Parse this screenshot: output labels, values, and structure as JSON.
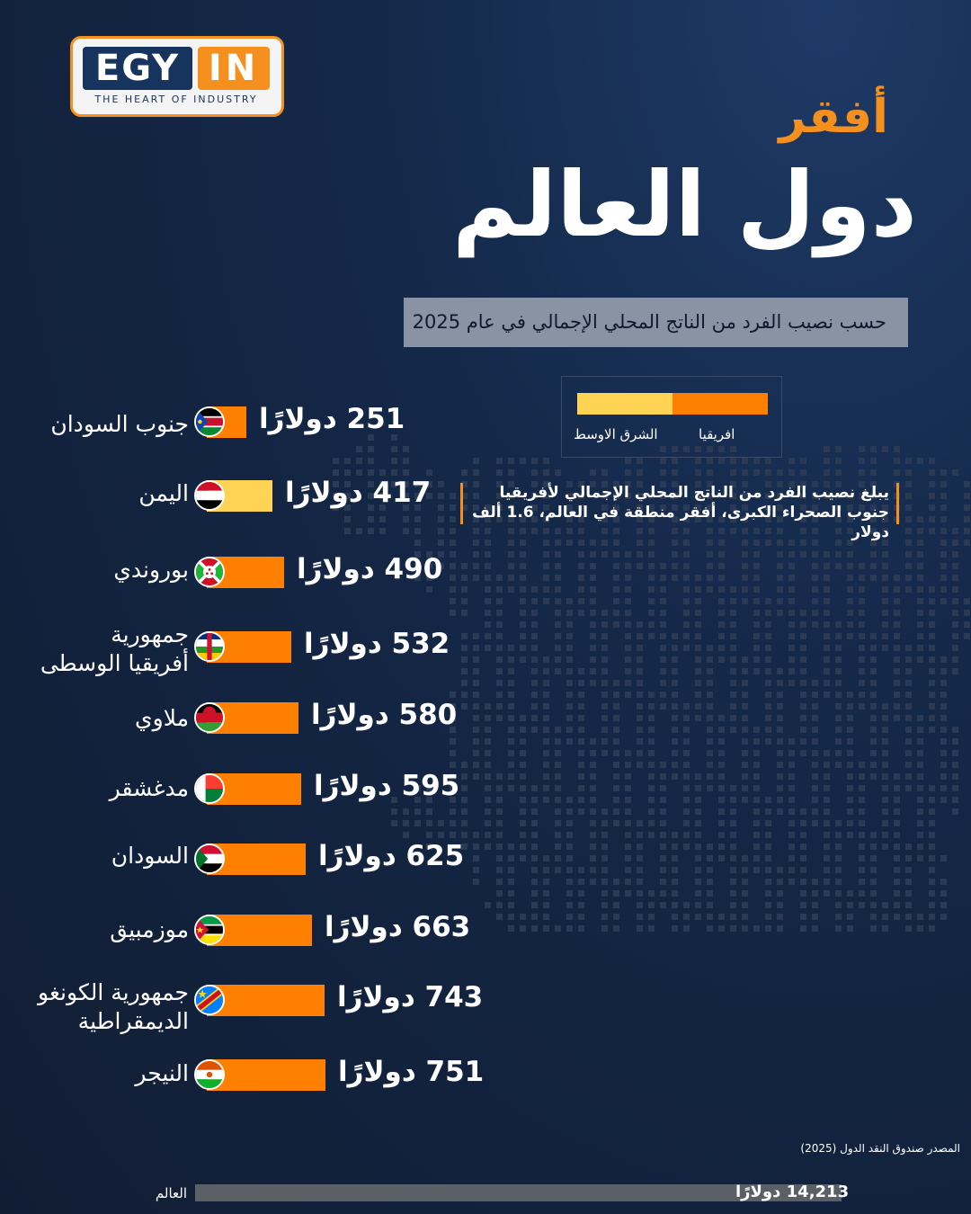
{
  "brand": {
    "logo_left": "EGY",
    "logo_right": "IN",
    "tagline": "THE HEART OF INDUSTRY"
  },
  "header": {
    "title_line1": "أفقر",
    "title_line2": "دول العالم",
    "subtitle": "حسب نصيب الفرد من الناتج المحلي الإجمالي في عام 2025"
  },
  "legend": {
    "africa": "افريقيا",
    "middle_east": "الشرق الاوسط"
  },
  "note": "يبلغ نصيب الفرد من الناتج المحلي الإجمالي لأفريقيا جنوب الصحراء الكبرى، أفقر منطقة في العالم، 1.6 ألف دولار",
  "source": "المصدر صندوق النقد الدول (2025)",
  "colors": {
    "africa": "#ff8000",
    "middle_east": "#ffd454",
    "world": "#5b5f66",
    "accent": "#f5901e"
  },
  "chart_data": {
    "type": "bar",
    "title": "",
    "xlabel": "",
    "ylabel": "",
    "unit": "دولارًا",
    "rows": [
      {
        "country": "جنوب السودان",
        "value": 251,
        "value_text": "251 دولارًا",
        "region": "africa",
        "flag": "south-sudan"
      },
      {
        "country": "اليمن",
        "value": 417,
        "value_text": "417 دولارًا",
        "region": "middle_east",
        "flag": "yemen"
      },
      {
        "country": "بوروندي",
        "value": 490,
        "value_text": "490 دولارًا",
        "region": "africa",
        "flag": "burundi"
      },
      {
        "country": "جمهورية أفريقيا الوسطى",
        "label_lines": [
          "جمهورية",
          "أفريقيا الوسطى"
        ],
        "value": 532,
        "value_text": "532 دولارًا",
        "region": "africa",
        "flag": "central-african-republic"
      },
      {
        "country": "ملاوي",
        "value": 580,
        "value_text": "580 دولارًا",
        "region": "africa",
        "flag": "malawi"
      },
      {
        "country": "مدغشقر",
        "value": 595,
        "value_text": "595 دولارًا",
        "region": "africa",
        "flag": "madagascar"
      },
      {
        "country": "السودان",
        "value": 625,
        "value_text": "625 دولارًا",
        "region": "africa",
        "flag": "sudan"
      },
      {
        "country": "موزمبيق",
        "value": 663,
        "value_text": "663 دولارًا",
        "region": "africa",
        "flag": "mozambique"
      },
      {
        "country": "جمهورية الكونغو الديمقراطية",
        "label_lines": [
          "جمهورية الكونغو",
          "الديمقراطية"
        ],
        "value": 743,
        "value_text": "743 دولارًا",
        "region": "africa",
        "flag": "dr-congo"
      },
      {
        "country": "النيجر",
        "value": 751,
        "value_text": "751 دولارًا",
        "region": "africa",
        "flag": "niger"
      }
    ],
    "world": {
      "label": "العالم",
      "value": 14213,
      "value_text": "14,213 دولارًا"
    }
  }
}
